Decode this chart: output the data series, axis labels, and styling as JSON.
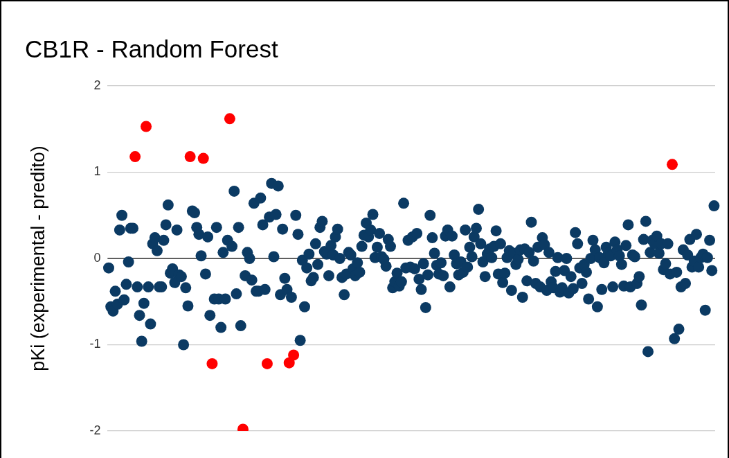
{
  "chart_data": {
    "type": "scatter",
    "title": "CB1R - Random Forest",
    "ylabel": "pKi (experimental - predito)",
    "ylim": [
      -2,
      2
    ],
    "yticks": [
      -2,
      -1,
      0,
      1,
      2
    ],
    "grid": "y",
    "legend": false,
    "marker": "circle",
    "tick_labels": "y",
    "ref_lines": [
      {
        "axis": "y",
        "value": 0,
        "color": "#333333"
      }
    ],
    "categories": [
      null,
      null,
      null,
      null,
      null,
      null,
      null,
      null,
      null,
      null,
      null,
      null,
      null,
      null,
      null,
      null,
      null,
      null,
      null,
      null,
      null,
      null,
      null,
      null,
      null,
      null,
      null,
      null,
      null,
      null,
      null,
      null,
      null,
      null,
      null,
      null,
      null,
      null,
      null,
      null,
      null,
      null,
      null,
      null,
      null,
      null,
      null,
      null,
      null,
      null,
      null,
      null,
      null,
      null,
      null,
      null,
      null,
      null,
      null,
      null,
      null,
      null,
      null,
      null,
      null,
      null,
      null,
      null,
      null,
      null,
      null,
      null,
      null,
      null,
      null,
      null,
      null,
      null,
      null,
      null,
      null,
      null,
      null,
      null,
      null,
      null,
      null,
      null,
      null,
      null,
      null,
      null,
      null,
      null,
      null,
      null,
      null,
      null,
      null,
      null,
      null,
      null,
      null,
      null,
      null,
      null,
      null,
      null,
      null,
      null,
      null,
      null,
      null,
      null,
      null,
      null,
      null,
      null,
      null,
      null,
      null,
      null,
      null,
      null,
      null,
      null,
      null,
      null,
      null,
      null,
      null,
      null,
      null,
      null,
      null,
      null,
      null,
      null,
      null,
      null,
      null,
      null,
      null,
      null,
      null,
      null,
      null,
      null,
      null,
      null,
      null,
      null,
      null,
      null,
      null,
      null,
      null,
      null,
      null,
      null,
      null,
      null,
      null,
      null,
      null,
      null,
      null,
      null,
      null,
      null,
      null,
      null,
      null,
      null,
      null,
      null,
      null,
      null,
      null,
      null,
      null,
      null,
      null,
      null,
      null,
      null,
      null,
      null,
      null,
      null,
      null,
      null,
      null,
      null,
      null,
      null,
      null,
      null,
      null,
      null,
      null,
      null,
      null,
      null,
      null,
      null,
      null,
      null,
      null,
      null,
      null,
      null,
      null,
      null,
      null,
      null,
      null,
      null,
      null,
      null,
      null,
      null,
      null,
      null,
      null,
      null,
      null,
      null,
      null,
      null,
      null,
      null,
      null,
      null,
      null,
      null,
      null,
      null,
      null,
      null,
      null,
      null,
      null,
      null,
      null,
      null,
      null,
      null,
      null,
      null,
      null,
      null,
      null,
      null,
      null,
      null,
      null,
      null,
      null,
      null,
      null,
      null,
      null,
      null,
      null,
      null,
      null,
      null,
      null,
      null,
      null,
      null,
      null,
      null,
      null,
      null
    ],
    "values": [
      -0.11,
      -0.56,
      -0.61,
      -0.38,
      -0.53,
      0.33,
      0.5,
      -0.48,
      -0.3,
      -0.04,
      0.35,
      0.35,
      1.18,
      -0.33,
      -0.66,
      -0.96,
      -0.52,
      1.53,
      -0.33,
      -0.76,
      0.17,
      0.24,
      0.09,
      -0.33,
      -0.33,
      0.21,
      0.39,
      0.62,
      -0.17,
      -0.12,
      -0.28,
      0.33,
      -0.19,
      -0.21,
      -1.0,
      -0.34,
      -0.55,
      1.18,
      0.55,
      0.53,
      0.36,
      0.28,
      0.03,
      1.16,
      -0.18,
      0.25,
      -0.66,
      -1.22,
      -0.47,
      0.36,
      -0.47,
      -0.8,
      0.07,
      -0.47,
      0.21,
      1.62,
      0.14,
      0.78,
      -0.41,
      0.36,
      -0.78,
      -1.98,
      -0.2,
      0.07,
      0.0,
      -0.25,
      0.64,
      -0.38,
      -0.38,
      0.7,
      0.39,
      -0.36,
      -1.22,
      0.48,
      0.87,
      0.02,
      0.51,
      0.84,
      -0.42,
      0.34,
      -0.23,
      -0.36,
      -1.21,
      -0.45,
      -1.12,
      0.5,
      0.28,
      -0.95,
      -0.02,
      -0.56,
      -0.11,
      0.05,
      -0.26,
      -0.22,
      0.17,
      -0.07,
      0.36,
      0.43,
      0.08,
      0.05,
      -0.2,
      0.15,
      0.04,
      0.25,
      0.34,
      0.0,
      -0.22,
      -0.42,
      -0.18,
      0.07,
      0.04,
      -0.12,
      -0.2,
      -0.05,
      -0.16,
      0.14,
      0.27,
      0.41,
      0.25,
      0.33,
      0.51,
      0.01,
      0.13,
      0.29,
      0.02,
      -0.01,
      -0.09,
      0.22,
      0.14,
      -0.34,
      -0.27,
      -0.17,
      -0.32,
      -0.27,
      0.64,
      -0.11,
      0.21,
      -0.1,
      0.25,
      -0.12,
      0.29,
      -0.24,
      -0.36,
      -0.06,
      -0.57,
      -0.19,
      0.5,
      0.24,
      0.06,
      -0.08,
      -0.18,
      -0.05,
      -0.2,
      0.26,
      0.33,
      -0.33,
      0.26,
      0.04,
      -0.06,
      -0.19,
      -0.04,
      -0.16,
      0.33,
      -0.1,
      0.13,
      0.02,
      0.25,
      0.35,
      0.57,
      0.17,
      -0.04,
      -0.21,
      0.05,
      0.11,
      0.01,
      0.14,
      0.32,
      -0.18,
      0.17,
      -0.28,
      -0.17,
      0.01,
      0.09,
      -0.37,
      0.06,
      -0.07,
      -0.01,
      0.1,
      -0.45,
      0.11,
      -0.26,
      0.07,
      0.42,
      -0.03,
      -0.29,
      0.13,
      -0.33,
      0.24,
      0.16,
      -0.37,
      0.07,
      -0.27,
      -0.34,
      -0.15,
      0.01,
      -0.39,
      -0.34,
      -0.14,
      0.0,
      -0.4,
      -0.21,
      -0.35,
      0.3,
      0.17,
      -0.11,
      -0.29,
      -0.07,
      -0.16,
      -0.47,
      0.0,
      0.21,
      0.1,
      -0.56,
      0.01,
      -0.36,
      -0.05,
      0.13,
      0.06,
      0.03,
      -0.33,
      0.19,
      0.1,
      0.03,
      -0.07,
      -0.32,
      0.15,
      0.39,
      -0.33,
      0.04,
      0.02,
      -0.29,
      -0.21,
      -0.54,
      0.22,
      0.43,
      -1.08,
      0.07,
      0.21,
      0.17,
      0.26,
      0.06,
      0.17,
      -0.13,
      -0.06,
      0.17,
      -0.18,
      1.09,
      -0.93,
      -0.16,
      -0.82,
      -0.33,
      0.1,
      -0.29,
      0.04,
      0.22,
      -0.1,
      -0.03,
      0.28,
      -0.1,
      0.01,
      0.05,
      -0.6,
      0.01,
      0.21,
      -0.14,
      0.61
    ],
    "colors": [
      "#0b3a63",
      "#0b3a63",
      "#0b3a63",
      "#0b3a63",
      "#0b3a63",
      "#0b3a63",
      "#0b3a63",
      "#0b3a63",
      "#0b3a63",
      "#0b3a63",
      "#0b3a63",
      "#0b3a63",
      "#ff0000",
      "#0b3a63",
      "#0b3a63",
      "#0b3a63",
      "#0b3a63",
      "#ff0000",
      "#0b3a63",
      "#0b3a63",
      "#0b3a63",
      "#0b3a63",
      "#0b3a63",
      "#0b3a63",
      "#0b3a63",
      "#0b3a63",
      "#0b3a63",
      "#0b3a63",
      "#0b3a63",
      "#0b3a63",
      "#0b3a63",
      "#0b3a63",
      "#0b3a63",
      "#0b3a63",
      "#0b3a63",
      "#0b3a63",
      "#0b3a63",
      "#ff0000",
      "#0b3a63",
      "#0b3a63",
      "#0b3a63",
      "#0b3a63",
      "#0b3a63",
      "#ff0000",
      "#0b3a63",
      "#0b3a63",
      "#0b3a63",
      "#ff0000",
      "#0b3a63",
      "#0b3a63",
      "#0b3a63",
      "#0b3a63",
      "#0b3a63",
      "#0b3a63",
      "#0b3a63",
      "#ff0000",
      "#0b3a63",
      "#0b3a63",
      "#0b3a63",
      "#0b3a63",
      "#0b3a63",
      "#ff0000",
      "#0b3a63",
      "#0b3a63",
      "#0b3a63",
      "#0b3a63",
      "#0b3a63",
      "#0b3a63",
      "#0b3a63",
      "#0b3a63",
      "#0b3a63",
      "#0b3a63",
      "#ff0000",
      "#0b3a63",
      "#0b3a63",
      "#0b3a63",
      "#0b3a63",
      "#0b3a63",
      "#0b3a63",
      "#0b3a63",
      "#0b3a63",
      "#0b3a63",
      "#ff0000",
      "#0b3a63",
      "#ff0000",
      "#0b3a63",
      "#0b3a63",
      "#0b3a63",
      "#0b3a63",
      "#0b3a63",
      "#0b3a63",
      "#0b3a63",
      "#0b3a63",
      "#0b3a63",
      "#0b3a63",
      "#0b3a63",
      "#0b3a63",
      "#0b3a63",
      "#0b3a63",
      "#0b3a63",
      "#0b3a63",
      "#0b3a63",
      "#0b3a63",
      "#0b3a63",
      "#0b3a63",
      "#0b3a63",
      "#0b3a63",
      "#0b3a63",
      "#0b3a63",
      "#0b3a63",
      "#0b3a63",
      "#0b3a63",
      "#0b3a63",
      "#0b3a63",
      "#0b3a63",
      "#0b3a63",
      "#0b3a63",
      "#0b3a63",
      "#0b3a63",
      "#0b3a63",
      "#0b3a63",
      "#0b3a63",
      "#0b3a63",
      "#0b3a63",
      "#0b3a63",
      "#0b3a63",
      "#0b3a63",
      "#0b3a63",
      "#0b3a63",
      "#0b3a63",
      "#0b3a63",
      "#0b3a63",
      "#0b3a63",
      "#0b3a63",
      "#0b3a63",
      "#0b3a63",
      "#0b3a63",
      "#0b3a63",
      "#0b3a63",
      "#0b3a63",
      "#0b3a63",
      "#0b3a63",
      "#0b3a63",
      "#0b3a63",
      "#0b3a63",
      "#0b3a63",
      "#0b3a63",
      "#0b3a63",
      "#0b3a63",
      "#0b3a63",
      "#0b3a63",
      "#0b3a63",
      "#0b3a63",
      "#0b3a63",
      "#0b3a63",
      "#0b3a63",
      "#0b3a63",
      "#0b3a63",
      "#0b3a63",
      "#0b3a63",
      "#0b3a63",
      "#0b3a63",
      "#0b3a63",
      "#0b3a63",
      "#0b3a63",
      "#0b3a63",
      "#0b3a63",
      "#0b3a63",
      "#0b3a63",
      "#0b3a63",
      "#0b3a63",
      "#0b3a63",
      "#0b3a63",
      "#0b3a63",
      "#0b3a63",
      "#0b3a63",
      "#0b3a63",
      "#0b3a63",
      "#0b3a63",
      "#0b3a63",
      "#0b3a63",
      "#0b3a63",
      "#0b3a63",
      "#0b3a63",
      "#0b3a63",
      "#0b3a63",
      "#0b3a63",
      "#0b3a63",
      "#0b3a63",
      "#0b3a63",
      "#0b3a63",
      "#0b3a63",
      "#0b3a63",
      "#0b3a63",
      "#0b3a63",
      "#0b3a63",
      "#0b3a63",
      "#0b3a63",
      "#0b3a63",
      "#0b3a63",
      "#0b3a63",
      "#0b3a63",
      "#0b3a63",
      "#0b3a63",
      "#0b3a63",
      "#0b3a63",
      "#0b3a63",
      "#0b3a63",
      "#0b3a63",
      "#0b3a63",
      "#0b3a63",
      "#0b3a63",
      "#0b3a63",
      "#0b3a63",
      "#0b3a63",
      "#0b3a63",
      "#0b3a63",
      "#0b3a63",
      "#0b3a63",
      "#0b3a63",
      "#0b3a63",
      "#0b3a63",
      "#0b3a63",
      "#0b3a63",
      "#0b3a63",
      "#0b3a63",
      "#0b3a63",
      "#0b3a63",
      "#0b3a63",
      "#0b3a63",
      "#0b3a63",
      "#0b3a63",
      "#0b3a63",
      "#0b3a63",
      "#0b3a63",
      "#0b3a63",
      "#0b3a63",
      "#0b3a63",
      "#0b3a63",
      "#0b3a63",
      "#0b3a63",
      "#0b3a63",
      "#0b3a63",
      "#0b3a63",
      "#0b3a63",
      "#0b3a63",
      "#0b3a63",
      "#0b3a63",
      "#0b3a63",
      "#0b3a63",
      "#0b3a63",
      "#0b3a63",
      "#0b3a63",
      "#0b3a63",
      "#0b3a63",
      "#0b3a63",
      "#ff0000",
      "#0b3a63",
      "#0b3a63",
      "#0b3a63",
      "#0b3a63",
      "#0b3a63",
      "#0b3a63",
      "#0b3a63",
      "#0b3a63",
      "#0b3a63",
      "#0b3a63",
      "#0b3a63",
      "#0b3a63",
      "#0b3a63",
      "#0b3a63",
      "#0b3a63",
      "#0b3a63",
      "#0b3a63",
      "#0b3a63",
      "#0b3a63"
    ]
  }
}
